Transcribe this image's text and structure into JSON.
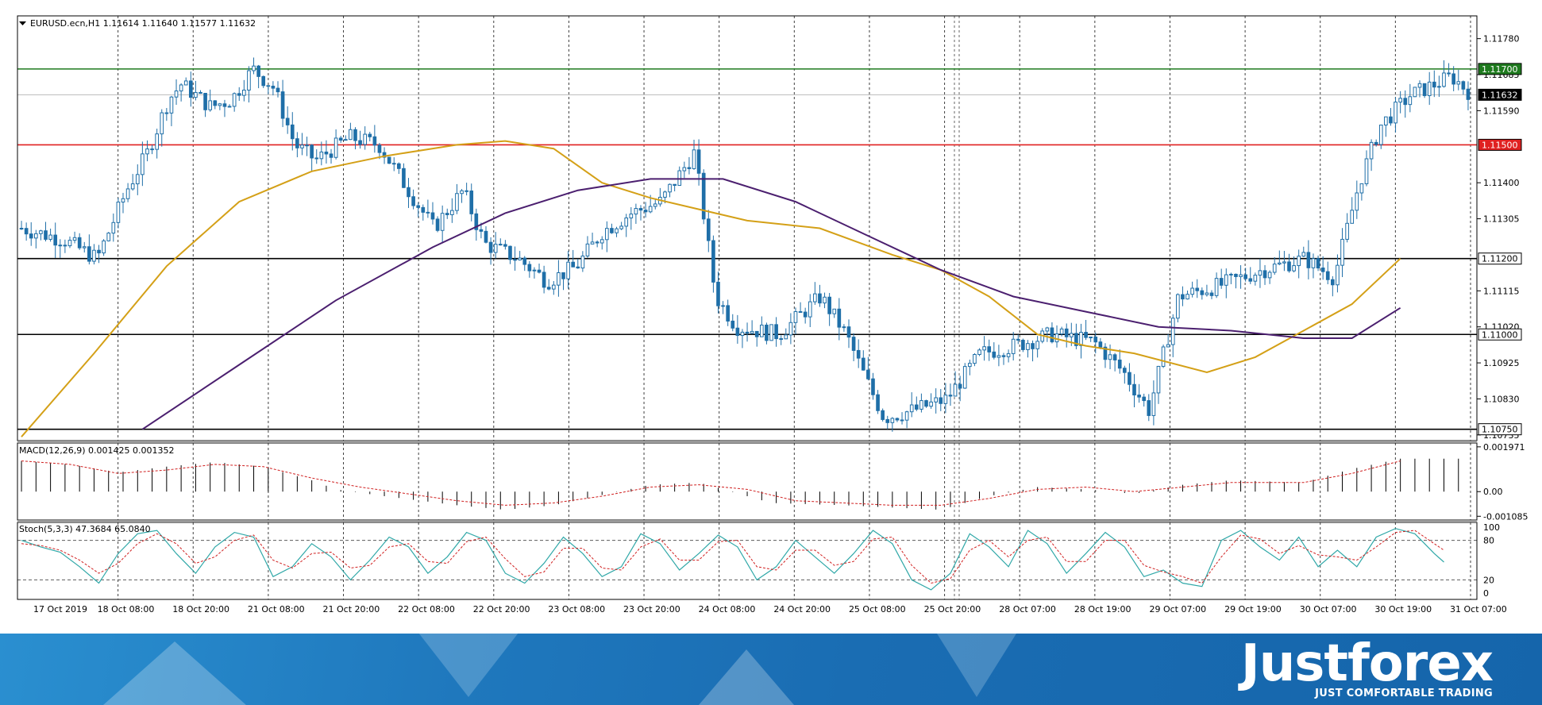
{
  "chart_data": {
    "type": "candlestick",
    "symbol_header": "EURUSD.ecn,H1  1.11614 1.11640 1.11577 1.11632",
    "price_axis": {
      "ticks": [
        "1.11780",
        "1.11685",
        "1.11590",
        "1.11400",
        "1.11305",
        "1.11115",
        "1.11020",
        "1.10925",
        "1.10830",
        "1.10735"
      ],
      "range": [
        1.1072,
        1.1184
      ]
    },
    "time_axis": {
      "labels": [
        "17 Oct 2019",
        "18 Oct 08:00",
        "18 Oct 20:00",
        "21 Oct 08:00",
        "21 Oct 20:00",
        "22 Oct 08:00",
        "22 Oct 20:00",
        "23 Oct 08:00",
        "23 Oct 20:00",
        "24 Oct 08:00",
        "24 Oct 20:00",
        "25 Oct 08:00",
        "25 Oct 20:00",
        "28 Oct 07:00",
        "28 Oct 19:00",
        "29 Oct 07:00",
        "29 Oct 19:00",
        "30 Oct 07:00",
        "30 Oct 19:00",
        "31 Oct 07:00"
      ]
    },
    "levels": [
      {
        "value": "1.11700",
        "color": "#1e7a1e",
        "price": 1.117
      },
      {
        "value": "1.11632",
        "color": "#000000",
        "price": 1.11632
      },
      {
        "value": "1.11500",
        "color": "#e02020",
        "price": 1.115
      },
      {
        "value": "1.11200",
        "color": "#000000",
        "price": 1.112
      },
      {
        "value": "1.11000",
        "color": "#000000",
        "price": 1.11
      },
      {
        "value": "1.10750",
        "color": "#000000",
        "price": 1.1075
      }
    ],
    "series": [
      {
        "type": "moving-average",
        "color": "#d4a017",
        "points": [
          [
            0,
            1.1073
          ],
          [
            15,
            1.1095
          ],
          [
            30,
            1.1118
          ],
          [
            45,
            1.1135
          ],
          [
            60,
            1.1143
          ],
          [
            75,
            1.1147
          ],
          [
            90,
            1.115
          ],
          [
            100,
            1.1151
          ],
          [
            110,
            1.1149
          ],
          [
            120,
            1.114
          ],
          [
            130,
            1.1136
          ],
          [
            140,
            1.1133
          ],
          [
            150,
            1.113
          ],
          [
            165,
            1.1128
          ],
          [
            180,
            1.1121
          ],
          [
            190,
            1.1117
          ],
          [
            200,
            1.111
          ],
          [
            210,
            1.11
          ],
          [
            220,
            1.1097
          ],
          [
            230,
            1.1095
          ],
          [
            245,
            1.109
          ],
          [
            255,
            1.1094
          ],
          [
            265,
            1.1101
          ],
          [
            275,
            1.1108
          ],
          [
            285,
            1.112
          ]
        ]
      },
      {
        "type": "moving-average",
        "color": "#4b1f6f",
        "points": [
          [
            25,
            1.1075
          ],
          [
            45,
            1.1092
          ],
          [
            65,
            1.1109
          ],
          [
            85,
            1.1123
          ],
          [
            100,
            1.1132
          ],
          [
            115,
            1.1138
          ],
          [
            130,
            1.1141
          ],
          [
            145,
            1.1141
          ],
          [
            160,
            1.1135
          ],
          [
            175,
            1.1126
          ],
          [
            190,
            1.1117
          ],
          [
            205,
            1.111
          ],
          [
            220,
            1.1106
          ],
          [
            235,
            1.1102
          ],
          [
            250,
            1.1101
          ],
          [
            265,
            1.1099
          ],
          [
            275,
            1.1099
          ],
          [
            285,
            1.1107
          ]
        ]
      }
    ],
    "macd": {
      "label": "MACD(12,26,9) 0.001425 0.001352",
      "ticks": [
        "0.001971",
        "0.00",
        "-0.001085"
      ],
      "range": [
        -0.00125,
        0.00214
      ],
      "hist": [
        [
          0,
          0.00135
        ],
        [
          10,
          0.0012
        ],
        [
          20,
          0.00085
        ],
        [
          30,
          0.0011
        ],
        [
          40,
          0.0013
        ],
        [
          50,
          0.0011
        ],
        [
          60,
          0.0005
        ],
        [
          65,
          0.0001
        ],
        [
          75,
          -0.0002
        ],
        [
          90,
          -0.0006
        ],
        [
          100,
          -0.0008
        ],
        [
          110,
          -0.0006
        ],
        [
          120,
          -0.00015
        ],
        [
          130,
          0.0003
        ],
        [
          140,
          0.0004
        ],
        [
          145,
          0.0001
        ],
        [
          155,
          -0.0005
        ],
        [
          170,
          -0.0006
        ],
        [
          180,
          -0.0007
        ],
        [
          190,
          -0.0008
        ],
        [
          200,
          -0.0002
        ],
        [
          210,
          0.0002
        ],
        [
          220,
          0.0001
        ],
        [
          230,
          -0.0001
        ],
        [
          240,
          0.0003
        ],
        [
          250,
          0.0005
        ],
        [
          265,
          0.0004
        ],
        [
          275,
          0.001
        ],
        [
          285,
          0.00145
        ]
      ],
      "signal": [
        [
          0,
          0.00135
        ],
        [
          10,
          0.0012
        ],
        [
          20,
          0.0008
        ],
        [
          30,
          0.00095
        ],
        [
          40,
          0.0012
        ],
        [
          50,
          0.0011
        ],
        [
          60,
          0.0006
        ],
        [
          70,
          0.0002
        ],
        [
          80,
          -0.0001
        ],
        [
          90,
          -0.0004
        ],
        [
          100,
          -0.0006
        ],
        [
          110,
          -0.0005
        ],
        [
          120,
          -0.0002
        ],
        [
          130,
          0.0002
        ],
        [
          140,
          0.0003
        ],
        [
          150,
          0.0001
        ],
        [
          160,
          -0.0004
        ],
        [
          170,
          -0.0005
        ],
        [
          180,
          -0.0006
        ],
        [
          190,
          -0.0006
        ],
        [
          200,
          -0.0003
        ],
        [
          210,
          0.0001
        ],
        [
          220,
          0.0002
        ],
        [
          230,
          0.0
        ],
        [
          240,
          0.0002
        ],
        [
          250,
          0.0004
        ],
        [
          265,
          0.0004
        ],
        [
          275,
          0.0008
        ],
        [
          285,
          0.00135
        ]
      ]
    },
    "stoch": {
      "label": "Stoch(5,3,3) 47.3684 65.0840",
      "ticks": [
        "100",
        "80",
        "20",
        "0"
      ],
      "range": [
        0,
        100
      ],
      "k": [
        [
          0,
          80
        ],
        [
          4,
          70
        ],
        [
          8,
          62
        ],
        [
          12,
          40
        ],
        [
          16,
          15
        ],
        [
          20,
          60
        ],
        [
          24,
          90
        ],
        [
          28,
          95
        ],
        [
          32,
          60
        ],
        [
          36,
          30
        ],
        [
          40,
          70
        ],
        [
          44,
          92
        ],
        [
          48,
          85
        ],
        [
          52,
          25
        ],
        [
          56,
          40
        ],
        [
          60,
          75
        ],
        [
          64,
          55
        ],
        [
          68,
          20
        ],
        [
          72,
          50
        ],
        [
          76,
          85
        ],
        [
          80,
          70
        ],
        [
          84,
          30
        ],
        [
          88,
          55
        ],
        [
          92,
          92
        ],
        [
          96,
          80
        ],
        [
          100,
          30
        ],
        [
          104,
          15
        ],
        [
          108,
          45
        ],
        [
          112,
          85
        ],
        [
          116,
          60
        ],
        [
          120,
          25
        ],
        [
          124,
          40
        ],
        [
          128,
          90
        ],
        [
          132,
          75
        ],
        [
          136,
          35
        ],
        [
          140,
          60
        ],
        [
          144,
          88
        ],
        [
          148,
          70
        ],
        [
          152,
          20
        ],
        [
          156,
          40
        ],
        [
          160,
          80
        ],
        [
          164,
          55
        ],
        [
          168,
          30
        ],
        [
          172,
          60
        ],
        [
          176,
          95
        ],
        [
          180,
          75
        ],
        [
          184,
          20
        ],
        [
          188,
          5
        ],
        [
          192,
          30
        ],
        [
          196,
          90
        ],
        [
          200,
          70
        ],
        [
          204,
          40
        ],
        [
          208,
          95
        ],
        [
          212,
          75
        ],
        [
          216,
          30
        ],
        [
          220,
          60
        ],
        [
          224,
          92
        ],
        [
          228,
          70
        ],
        [
          232,
          25
        ],
        [
          236,
          35
        ],
        [
          240,
          15
        ],
        [
          244,
          10
        ],
        [
          248,
          80
        ],
        [
          252,
          95
        ],
        [
          256,
          70
        ],
        [
          260,
          50
        ],
        [
          264,
          85
        ],
        [
          268,
          40
        ],
        [
          272,
          65
        ],
        [
          276,
          40
        ],
        [
          280,
          85
        ],
        [
          284,
          98
        ],
        [
          288,
          90
        ],
        [
          292,
          60
        ],
        [
          294,
          47
        ]
      ],
      "d": [
        [
          0,
          75
        ],
        [
          4,
          72
        ],
        [
          8,
          65
        ],
        [
          12,
          50
        ],
        [
          16,
          30
        ],
        [
          20,
          45
        ],
        [
          24,
          75
        ],
        [
          28,
          90
        ],
        [
          32,
          75
        ],
        [
          36,
          45
        ],
        [
          40,
          55
        ],
        [
          44,
          80
        ],
        [
          48,
          88
        ],
        [
          52,
          50
        ],
        [
          56,
          38
        ],
        [
          60,
          60
        ],
        [
          64,
          62
        ],
        [
          68,
          38
        ],
        [
          72,
          42
        ],
        [
          76,
          70
        ],
        [
          80,
          75
        ],
        [
          84,
          48
        ],
        [
          88,
          45
        ],
        [
          92,
          78
        ],
        [
          96,
          85
        ],
        [
          100,
          52
        ],
        [
          104,
          25
        ],
        [
          108,
          32
        ],
        [
          112,
          68
        ],
        [
          116,
          68
        ],
        [
          120,
          38
        ],
        [
          124,
          35
        ],
        [
          128,
          70
        ],
        [
          132,
          82
        ],
        [
          136,
          50
        ],
        [
          140,
          50
        ],
        [
          144,
          78
        ],
        [
          148,
          80
        ],
        [
          152,
          40
        ],
        [
          156,
          35
        ],
        [
          160,
          65
        ],
        [
          164,
          65
        ],
        [
          168,
          42
        ],
        [
          172,
          48
        ],
        [
          176,
          82
        ],
        [
          180,
          85
        ],
        [
          184,
          42
        ],
        [
          188,
          15
        ],
        [
          192,
          22
        ],
        [
          196,
          65
        ],
        [
          200,
          80
        ],
        [
          204,
          55
        ],
        [
          208,
          80
        ],
        [
          212,
          85
        ],
        [
          216,
          48
        ],
        [
          220,
          48
        ],
        [
          224,
          80
        ],
        [
          228,
          80
        ],
        [
          232,
          42
        ],
        [
          236,
          32
        ],
        [
          240,
          25
        ],
        [
          244,
          15
        ],
        [
          248,
          55
        ],
        [
          252,
          88
        ],
        [
          256,
          82
        ],
        [
          260,
          60
        ],
        [
          264,
          72
        ],
        [
          268,
          58
        ],
        [
          272,
          55
        ],
        [
          276,
          50
        ],
        [
          280,
          70
        ],
        [
          284,
          92
        ],
        [
          288,
          95
        ],
        [
          292,
          75
        ],
        [
          294,
          65
        ]
      ]
    }
  },
  "footer": {
    "brand": "Justforex",
    "tagline": "JUST COMFORTABLE TRADING"
  }
}
